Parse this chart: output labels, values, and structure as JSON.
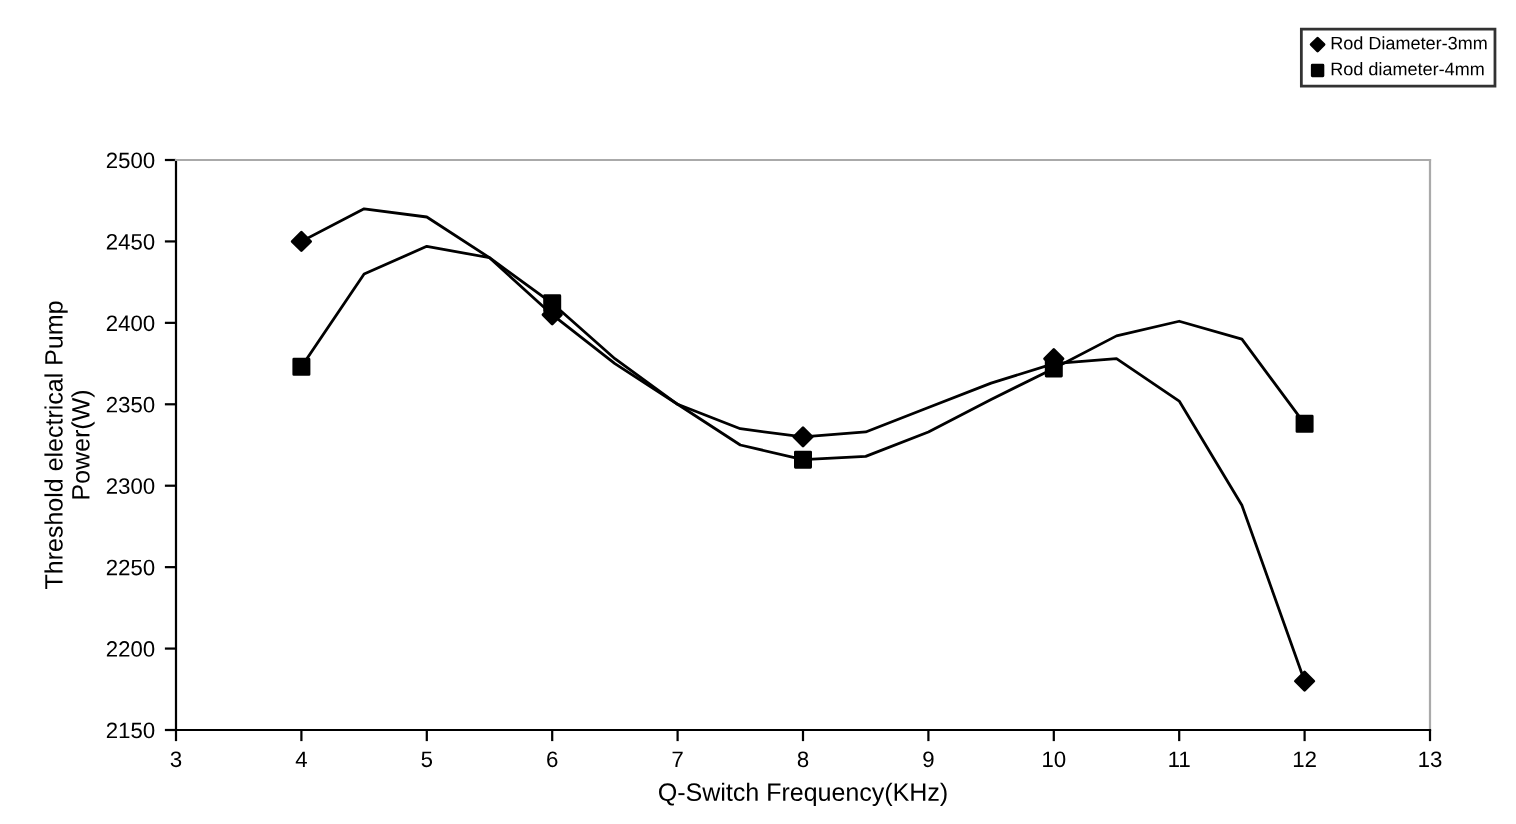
{
  "chart_data": {
    "type": "scatter",
    "xlabel": "Q-Switch Frequency(KHz)",
    "ylabel": "Threshold electrical Pump\nPower(W)",
    "xlim": [
      3,
      13
    ],
    "xticks": [
      3,
      4,
      5,
      6,
      7,
      8,
      9,
      10,
      11,
      12,
      13
    ],
    "ylim": [
      2150,
      2500
    ],
    "yticks": [
      2150,
      2200,
      2250,
      2300,
      2350,
      2400,
      2450,
      2500
    ],
    "grid": false,
    "legend": "top right",
    "series": [
      {
        "name": "Rod Diameter-3mm",
        "color": "#000000",
        "marker": "diamond",
        "x": [
          4,
          6,
          8,
          10,
          12
        ],
        "values": [
          2450,
          2405,
          2330,
          2378,
          2180
        ]
      },
      {
        "name": "Rod diameter-4mm",
        "color": "#000000",
        "marker": "square",
        "x": [
          4,
          6,
          8,
          10,
          12
        ],
        "values": [
          2373,
          2412,
          2316,
          2372,
          2338
        ]
      },
      {
        "type": "line",
        "color": "#000000",
        "marker": "none",
        "line_style": "solid",
        "x": [
          4,
          4.5,
          5,
          5.5,
          6,
          6.5,
          7,
          7.5,
          8,
          8.5,
          9,
          9.5,
          10,
          10.5,
          11,
          11.5,
          12
        ],
        "values": [
          2450,
          2470,
          2465,
          2440,
          2405,
          2375,
          2350,
          2335,
          2330,
          2333,
          2348,
          2363,
          2375,
          2378,
          2352,
          2288,
          2180
        ]
      },
      {
        "type": "line",
        "color": "#000000",
        "marker": "none",
        "line_style": "solid",
        "x": [
          4,
          4.5,
          5,
          5.5,
          6,
          6.5,
          7,
          7.5,
          8,
          8.5,
          9,
          9.5,
          10,
          10.5,
          11,
          11.5,
          12
        ],
        "values": [
          2373,
          2430,
          2447,
          2440,
          2412,
          2378,
          2350,
          2325,
          2316,
          2318,
          2333,
          2353,
          2372,
          2392,
          2401,
          2390,
          2338
        ]
      }
    ]
  }
}
